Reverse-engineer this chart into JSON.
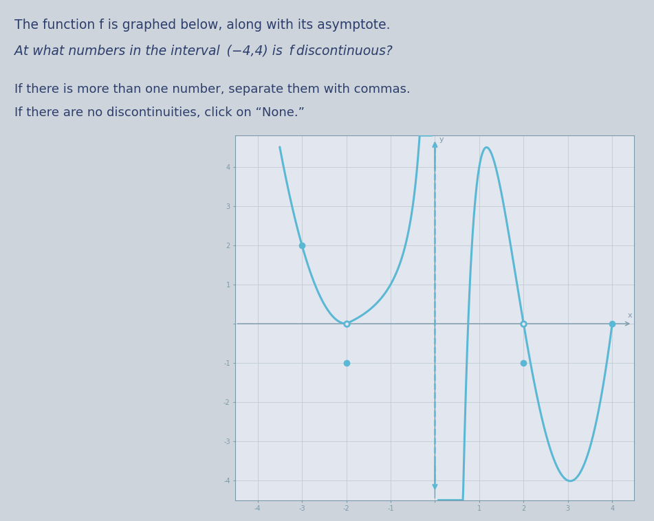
{
  "title_line1": "The function f is graphed below, along with its asymptote.",
  "title_line2": "At what numbers in the interval ­(-4,4) is f discontinuous?",
  "instruction1": "If there is more than one number, separate them with commas.",
  "instruction2": "If there are no discontinuities, click on “None.”",
  "xmin": -4.5,
  "xmax": 4.5,
  "ymin": -4.5,
  "ymax": 4.8,
  "asymptote_x": 0,
  "curve_color": "#5BB8D4",
  "background_color": "#CED4DC",
  "plot_bg_color": "#E2E6EE",
  "text_color": "#2C3E6B",
  "axis_color": "#7A9AAA",
  "grid_color": "#B8C4CC",
  "open_circles": [
    [
      -2,
      0
    ],
    [
      2,
      0
    ]
  ],
  "filled_circles": [
    [
      -3,
      2
    ],
    [
      -2,
      -1
    ],
    [
      2,
      -1
    ],
    [
      4,
      0
    ]
  ],
  "left_curve_x_start": -3.5,
  "left_curve_x_end": -0.08,
  "right_curve_x_start": 0.08,
  "right_curve_x_end": 4.0
}
